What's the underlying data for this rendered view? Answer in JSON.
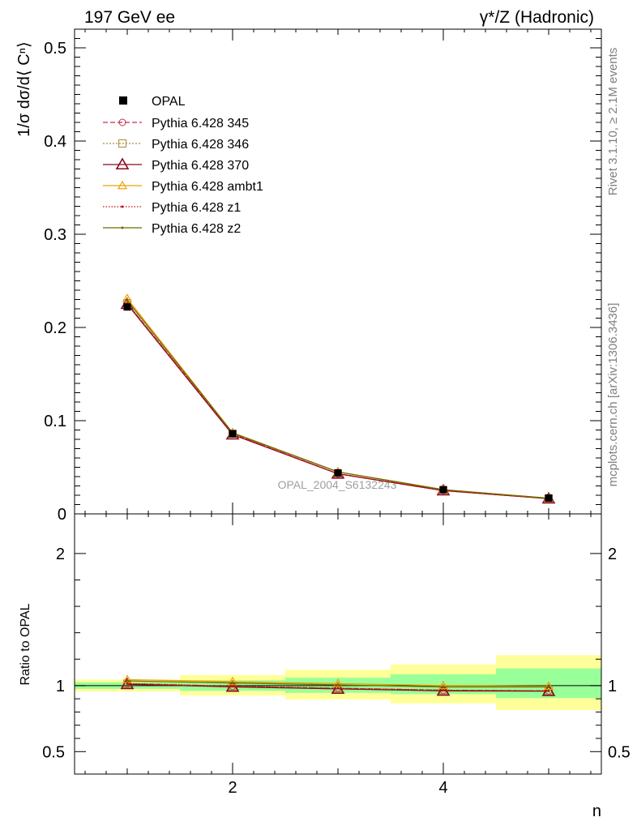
{
  "chart_data": [
    {
      "type": "line",
      "panel": "main",
      "title_left": "197 GeV ee",
      "title_right": "γ*/Z (Hadronic)",
      "ylabel": "1/σ dσ/d⟨ Cⁿ⟩",
      "xlim": [
        0.5,
        5.5
      ],
      "ylim": [
        0,
        0.52
      ],
      "yticks": [
        0,
        0.1,
        0.2,
        0.3,
        0.4,
        0.5
      ],
      "ytick_labels": [
        "0",
        "0.1",
        "0.2",
        "0.3",
        "0.4",
        "0.5"
      ],
      "x": [
        1,
        2,
        3,
        4,
        5
      ],
      "legend_position": "top-left",
      "annotation": "OPAL_2004_S6132243",
      "data": {
        "name": "OPAL",
        "y": [
          0.222,
          0.086,
          0.044,
          0.026,
          0.017
        ]
      },
      "series": [
        {
          "name": "Pythia 6.428 345",
          "color": "#c0304a",
          "marker": "circle",
          "dash": "6,3",
          "y": [
            0.226,
            0.086,
            0.043,
            0.025,
            0.0165
          ]
        },
        {
          "name": "Pythia 6.428 346",
          "color": "#a88c3c",
          "marker": "square",
          "dash": "2,2",
          "y": [
            0.226,
            0.086,
            0.043,
            0.025,
            0.0165
          ]
        },
        {
          "name": "Pythia 6.428 370",
          "color": "#8b0a1e",
          "marker": "triangle-large",
          "dash": "",
          "y": [
            0.225,
            0.085,
            0.043,
            0.025,
            0.0163
          ]
        },
        {
          "name": "Pythia 6.428 ambt1",
          "color": "#f0a000",
          "marker": "triangle",
          "dash": "",
          "y": [
            0.231,
            0.087,
            0.045,
            0.026,
            0.0168
          ]
        },
        {
          "name": "Pythia 6.428 z1",
          "color": "#c01010",
          "marker": "dot",
          "dash": "1.5,2",
          "y": [
            0.226,
            0.086,
            0.043,
            0.025,
            0.0165
          ]
        },
        {
          "name": "Pythia 6.428 z2",
          "color": "#6b6b00",
          "marker": "dot",
          "dash": "",
          "y": [
            0.229,
            0.087,
            0.045,
            0.026,
            0.0168
          ]
        }
      ]
    },
    {
      "type": "line",
      "panel": "ratio",
      "ylabel": "Ratio to OPAL",
      "xlabel": "n",
      "xlim": [
        0.5,
        5.5
      ],
      "ylim": [
        0.33,
        2.3
      ],
      "xticks": [
        2,
        4
      ],
      "xtick_labels": [
        "2",
        "4"
      ],
      "yticks": [
        0.5,
        1,
        2
      ],
      "ytick_labels": [
        "0.5",
        "1",
        "2"
      ],
      "x": [
        1,
        2,
        3,
        4,
        5
      ],
      "bands": {
        "edges": [
          0.5,
          1.5,
          2.5,
          3.5,
          4.5,
          5.5
        ],
        "yellow": [
          [
            0.955,
            1.045
          ],
          [
            0.925,
            1.08
          ],
          [
            0.895,
            1.12
          ],
          [
            0.865,
            1.16
          ],
          [
            0.815,
            1.23
          ]
        ],
        "green": [
          [
            0.975,
            1.025
          ],
          [
            0.96,
            1.04
          ],
          [
            0.945,
            1.06
          ],
          [
            0.935,
            1.085
          ],
          [
            0.905,
            1.13
          ]
        ]
      },
      "series": [
        {
          "name": "Pythia 6.428 345",
          "y": [
            1.015,
            0.995,
            0.98,
            0.965,
            0.96
          ]
        },
        {
          "name": "Pythia 6.428 346",
          "y": [
            1.015,
            0.995,
            0.98,
            0.965,
            0.96
          ]
        },
        {
          "name": "Pythia 6.428 370",
          "y": [
            1.01,
            0.99,
            0.975,
            0.96,
            0.958
          ]
        },
        {
          "name": "Pythia 6.428 ambt1",
          "y": [
            1.045,
            1.03,
            1.015,
            1.0,
            0.995
          ]
        },
        {
          "name": "Pythia 6.428 z1",
          "y": [
            1.015,
            0.995,
            0.98,
            0.965,
            0.96
          ]
        },
        {
          "name": "Pythia 6.428 z2",
          "y": [
            1.035,
            1.02,
            1.005,
            0.99,
            0.99
          ]
        }
      ]
    }
  ],
  "side_labels": {
    "top": "Rivet 3.1.10, ≥ 2.1M events",
    "bottom": "mcplots.cern.ch [arXiv:1306.3436]"
  }
}
